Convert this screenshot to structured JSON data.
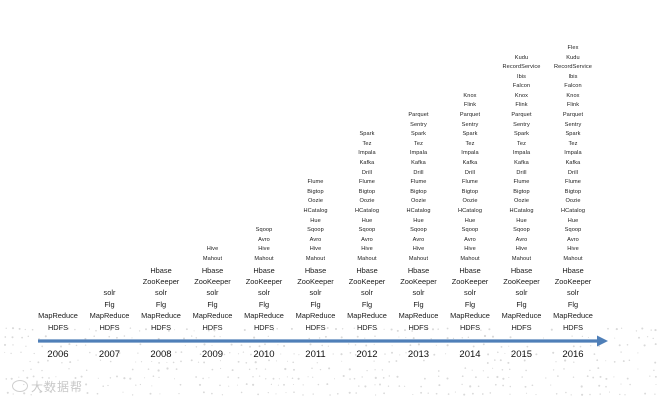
{
  "timeline": {
    "title": "",
    "arrow_color": "#4f7fb8",
    "columns": [
      {
        "year": "2006",
        "items": [
          "MapReduce",
          "HDFS"
        ]
      },
      {
        "year": "2007",
        "items": [
          "solr",
          "Flg",
          "MapReduce",
          "HDFS"
        ]
      },
      {
        "year": "2008",
        "items": [
          "Hbase",
          "ZooKeeper",
          "solr",
          "Flg",
          "MapReduce",
          "HDFS"
        ]
      },
      {
        "year": "2009",
        "items": [
          "Hive",
          "Mahout",
          "Hbase",
          "ZooKeeper",
          "solr",
          "Flg",
          "MapReduce",
          "HDFS"
        ]
      },
      {
        "year": "2010",
        "items": [
          "Sqoop",
          "Avro",
          "Hive",
          "Mahout",
          "Hbase",
          "ZooKeeper",
          "solr",
          "Flg",
          "MapReduce",
          "HDFS"
        ]
      },
      {
        "year": "2011",
        "items": [
          "Flume",
          "Bigtop",
          "Oozie",
          "HCatalog",
          "Hue",
          "Sqoop",
          "Avro",
          "Hive",
          "Mahout",
          "Hbase",
          "ZooKeeper",
          "solr",
          "Flg",
          "MapReduce",
          "HDFS"
        ]
      },
      {
        "year": "2012",
        "items": [
          "Spark",
          "Tez",
          "Impala",
          "Kafka",
          "Drill",
          "Flume",
          "Bigtop",
          "Oozie",
          "HCatalog",
          "Hue",
          "Sqoop",
          "Avro",
          "Hive",
          "Mahout",
          "Hbase",
          "ZooKeeper",
          "solr",
          "Flg",
          "MapReduce",
          "HDFS"
        ]
      },
      {
        "year": "2013",
        "items": [
          "Parquet",
          "Sentry",
          "Spark",
          "Tez",
          "Impala",
          "Kafka",
          "Drill",
          "Flume",
          "Bigtop",
          "Oozie",
          "HCatalog",
          "Hue",
          "Sqoop",
          "Avro",
          "Hive",
          "Mahout",
          "Hbase",
          "ZooKeeper",
          "solr",
          "Flg",
          "MapReduce",
          "HDFS"
        ]
      },
      {
        "year": "2014",
        "items": [
          "Knox",
          "Flink",
          "Parquet",
          "Sentry",
          "Spark",
          "Tez",
          "Impala",
          "Kafka",
          "Drill",
          "Flume",
          "Bigtop",
          "Oozie",
          "HCatalog",
          "Hue",
          "Sqoop",
          "Avro",
          "Hive",
          "Mahout",
          "Hbase",
          "ZooKeeper",
          "solr",
          "Flg",
          "MapReduce",
          "HDFS"
        ]
      },
      {
        "year": "2015",
        "items": [
          "Kudu",
          "RecordService",
          "Ibis",
          "Falcon",
          "Knox",
          "Flink",
          "Parquet",
          "Sentry",
          "Spark",
          "Tez",
          "Impala",
          "Kafka",
          "Drill",
          "Flume",
          "Bigtop",
          "Oozie",
          "HCatalog",
          "Hue",
          "Sqoop",
          "Avro",
          "Hive",
          "Mahout",
          "Hbase",
          "ZooKeeper",
          "solr",
          "Flg",
          "MapReduce",
          "HDFS"
        ]
      },
      {
        "year": "2016",
        "items": [
          "Flex",
          "Kudu",
          "RecordService",
          "Ibis",
          "Falcon",
          "Knox",
          "Flink",
          "Parquet",
          "Sentry",
          "Spark",
          "Tez",
          "Impala",
          "Kafka",
          "Drill",
          "Flume",
          "Bigtop",
          "Oozie",
          "HCatalog",
          "Hue",
          "Sqoop",
          "Avro",
          "Hive",
          "Mahout",
          "Hbase",
          "ZooKeeper",
          "solr",
          "Flg",
          "MapReduce",
          "HDFS"
        ]
      }
    ]
  },
  "watermark": {
    "text": "大数据帮",
    "icon": "speech-bubble-icon"
  }
}
